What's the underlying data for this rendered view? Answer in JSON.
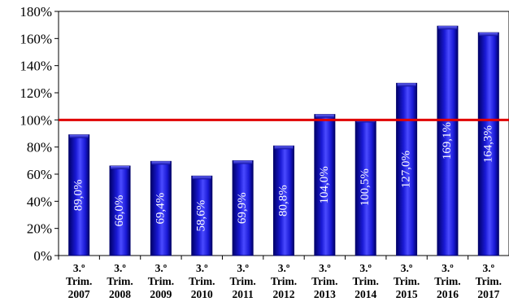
{
  "chart_data": {
    "type": "bar",
    "categories": [
      [
        "3.º",
        "Trim.",
        "2007"
      ],
      [
        "3.º",
        "Trim.",
        "2008"
      ],
      [
        "3.º",
        "Trim.",
        "2009"
      ],
      [
        "3.º",
        "Trim.",
        "2010"
      ],
      [
        "3.º",
        "Trim.",
        "2011"
      ],
      [
        "3.º",
        "Trim.",
        "2012"
      ],
      [
        "3.º",
        "Trim.",
        "2013"
      ],
      [
        "3.º",
        "Trim.",
        "2014"
      ],
      [
        "3.º",
        "Trim.",
        "2015"
      ],
      [
        "3.º",
        "Trim.",
        "2016"
      ],
      [
        "3.º",
        "Trim.",
        "2017"
      ]
    ],
    "values": [
      89.0,
      66.0,
      69.4,
      58.6,
      69.9,
      80.8,
      104.0,
      100.5,
      127.0,
      169.1,
      164.3
    ],
    "data_labels": [
      "89,0%",
      "66,0%",
      "69,4%",
      "58,6%",
      "69,9%",
      "80,8%",
      "104,0%",
      "100,5%",
      "127,0%",
      "169,1%",
      "164,3%"
    ],
    "y_ticks": [
      "0%",
      "20%",
      "40%",
      "60%",
      "80%",
      "100%",
      "120%",
      "140%",
      "160%",
      "180%"
    ],
    "ylim": [
      0,
      180
    ],
    "reference_line": 100,
    "title": "",
    "xlabel": "",
    "ylabel": "",
    "grid": false,
    "legend": "none",
    "colors": {
      "bar_dark": "#00006b",
      "bar_mid": "#1a1ad6",
      "bar_light": "#4a4aff",
      "reference_line": "#e00000",
      "axis": "#000000"
    }
  }
}
